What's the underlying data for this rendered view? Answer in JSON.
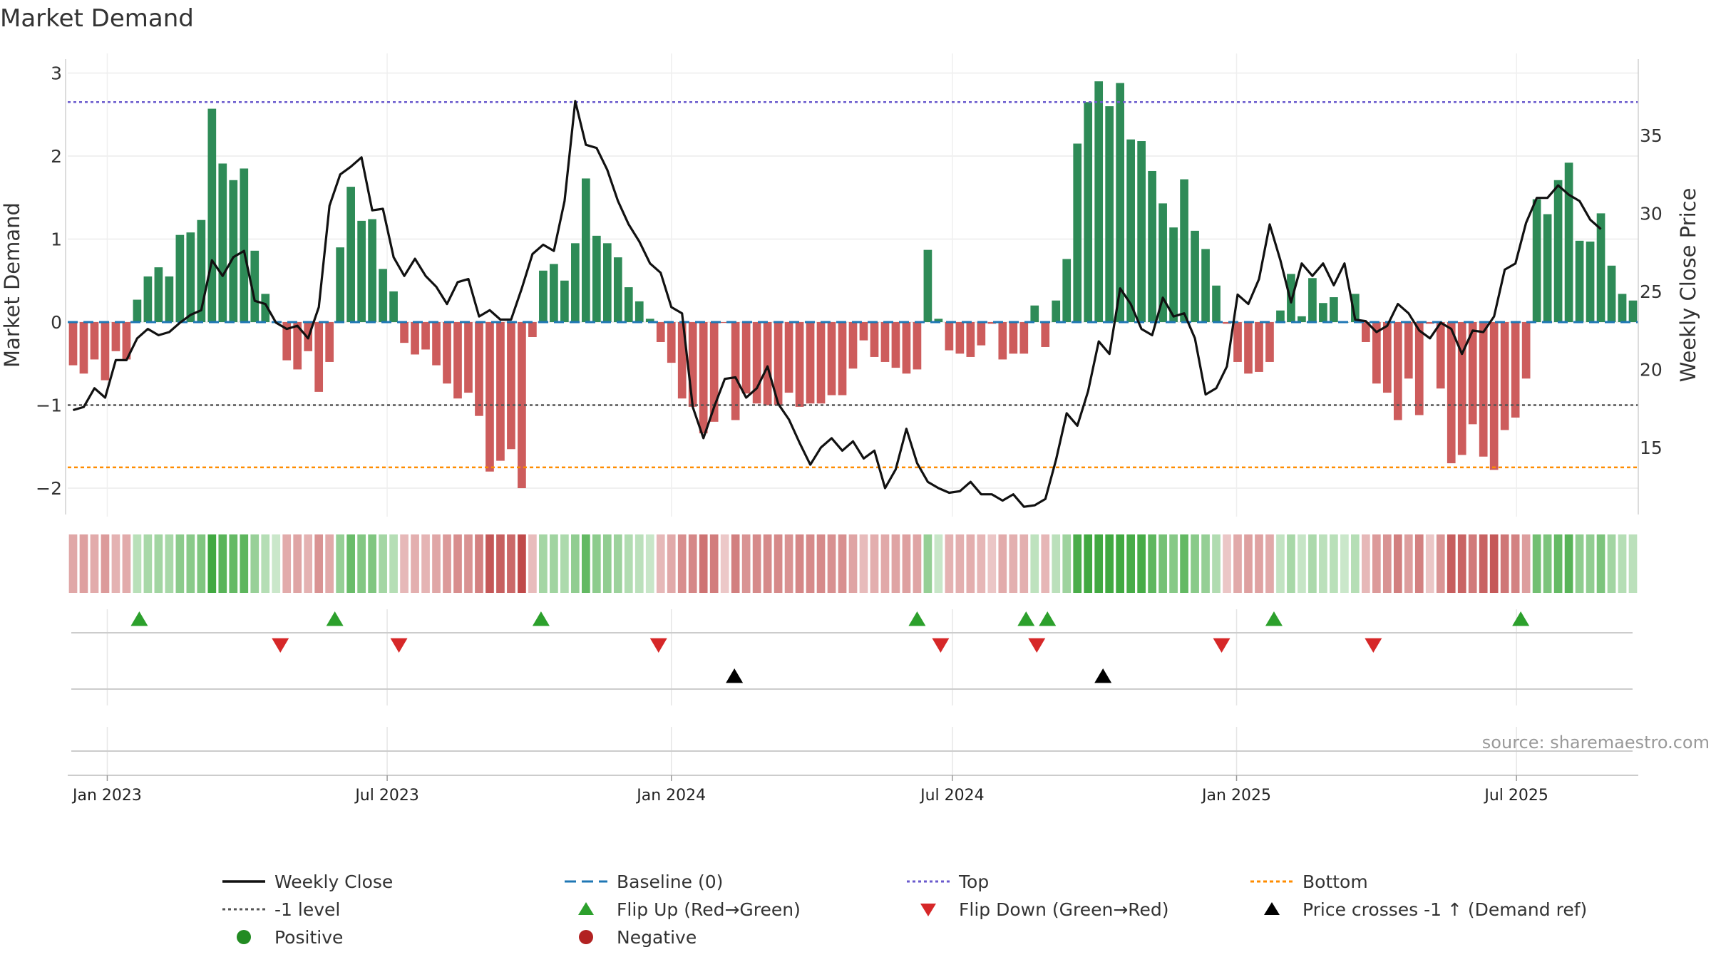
{
  "chart_data": {
    "type": "bar",
    "title": "Market Demand",
    "ylabel": "Market Demand",
    "y2label": "Weekly Close Price",
    "ylim": [
      -2.3,
      3.15
    ],
    "y2lim": [
      10.8,
      39.8
    ],
    "yticks": [
      -2,
      -1,
      0,
      1,
      2,
      3
    ],
    "yticklabels": [
      "−2",
      "−1",
      "0",
      "1",
      "2",
      "3"
    ],
    "y2ticks": [
      15,
      20,
      25,
      30,
      35
    ],
    "top_level": 2.65,
    "bottom_level": -1.75,
    "minus1_level": -1,
    "x_tick_labels": [
      "Jan 2023",
      "Jul 2023",
      "Jan 2024",
      "Jul 2024",
      "Jan 2025",
      "Jul 2025"
    ],
    "x_tick_weeks": [
      3.2,
      29.4,
      56.0,
      82.3,
      108.9,
      135.1
    ],
    "demand": [
      -0.52,
      -0.62,
      -0.45,
      -0.7,
      -0.35,
      -0.45,
      0.27,
      0.55,
      0.66,
      0.55,
      1.05,
      1.08,
      1.23,
      2.57,
      1.91,
      1.71,
      1.85,
      0.86,
      0.34,
      0.0,
      -0.46,
      -0.57,
      -0.35,
      -0.84,
      -0.48,
      0.9,
      1.63,
      1.22,
      1.24,
      0.64,
      0.37,
      -0.25,
      -0.39,
      -0.33,
      -0.52,
      -0.74,
      -0.92,
      -0.85,
      -1.13,
      -1.8,
      -1.67,
      -1.53,
      -2.0,
      -0.18,
      0.62,
      0.7,
      0.5,
      0.95,
      1.73,
      1.04,
      0.95,
      0.78,
      0.42,
      0.25,
      0.04,
      -0.24,
      -0.49,
      -0.92,
      -1.02,
      -1.34,
      -1.2,
      -0.01,
      -1.18,
      -0.86,
      -0.98,
      -1.0,
      -1.0,
      -0.85,
      -1.02,
      -0.98,
      -0.98,
      -0.88,
      -0.88,
      -0.56,
      -0.22,
      -0.42,
      -0.48,
      -0.55,
      -0.62,
      -0.57,
      0.87,
      0.04,
      -0.34,
      -0.38,
      -0.42,
      -0.28,
      -0.02,
      -0.45,
      -0.38,
      -0.38,
      0.2,
      -0.3,
      0.26,
      0.76,
      2.15,
      2.65,
      2.9,
      2.6,
      2.88,
      2.2,
      2.18,
      1.82,
      1.43,
      1.14,
      1.72,
      1.1,
      0.88,
      0.44,
      -0.02,
      -0.48,
      -0.62,
      -0.6,
      -0.48,
      0.14,
      0.58,
      0.07,
      0.53,
      0.23,
      0.3,
      0.0,
      0.34,
      -0.24,
      -0.74,
      -0.85,
      -1.18,
      -0.68,
      -1.12,
      -0.02,
      -0.8,
      -1.7,
      -1.6,
      -1.23,
      -1.62,
      -1.78,
      -1.3,
      -1.15,
      -0.68,
      1.48,
      1.3,
      1.71,
      1.92,
      0.98,
      0.97,
      1.31,
      0.68,
      0.34,
      0.26
    ],
    "weekly_close": [
      17.4,
      17.6,
      18.8,
      18.2,
      20.6,
      20.6,
      22.0,
      22.6,
      22.2,
      22.4,
      23.0,
      23.5,
      23.8,
      27.0,
      26.0,
      27.2,
      27.6,
      24.4,
      24.2,
      23.0,
      22.6,
      22.8,
      22.0,
      24.0,
      30.5,
      32.5,
      33.0,
      33.6,
      30.2,
      30.3,
      27.2,
      26.0,
      27.1,
      26.0,
      25.3,
      24.2,
      25.6,
      25.8,
      23.4,
      23.8,
      23.2,
      23.2,
      25.2,
      27.4,
      28.0,
      27.6,
      30.8,
      37.2,
      34.4,
      34.2,
      32.8,
      30.8,
      29.3,
      28.2,
      26.8,
      26.2,
      24.0,
      23.6,
      17.6,
      15.6,
      17.6,
      19.4,
      19.5,
      18.2,
      18.8,
      20.2,
      17.8,
      16.8,
      15.3,
      13.9,
      15.0,
      15.6,
      14.8,
      15.4,
      14.3,
      14.8,
      12.4,
      13.6,
      16.2,
      14.0,
      12.8,
      12.4,
      12.1,
      12.2,
      12.8,
      12.0,
      12.0,
      11.6,
      12.0,
      11.2,
      11.3,
      11.7,
      14.2,
      17.2,
      16.4,
      18.6,
      21.8,
      21.0,
      25.2,
      24.2,
      22.6,
      22.2,
      24.6,
      23.4,
      23.6,
      22.0,
      18.4,
      18.8,
      20.2,
      24.8,
      24.2,
      25.8,
      29.3,
      27.0,
      24.3,
      26.8,
      26.0,
      26.8,
      25.4,
      26.8,
      23.2,
      23.1,
      22.4,
      22.8,
      24.2,
      23.6,
      22.5,
      22.0,
      23.0,
      22.6,
      21.0,
      22.5,
      22.4,
      23.4,
      26.4,
      26.8,
      29.4,
      31.0,
      31.0,
      31.8,
      31.2,
      30.8,
      29.6,
      29.0
    ],
    "flip_up_weeks": [
      6.2,
      24.5,
      43.8,
      79.0,
      89.2,
      91.2,
      112.4,
      135.5
    ],
    "flip_down_weeks": [
      19.4,
      30.5,
      54.8,
      81.2,
      90.2,
      107.5,
      121.7
    ],
    "price_cross_weeks": [
      61.9,
      96.4
    ],
    "source": "source: sharemaestro.com",
    "legend": [
      {
        "key": "weekly_close",
        "label": "Weekly Close"
      },
      {
        "key": "baseline",
        "label": "Baseline (0)"
      },
      {
        "key": "top",
        "label": "Top"
      },
      {
        "key": "bottom",
        "label": "Bottom"
      },
      {
        "key": "minus1",
        "label": "-1 level"
      },
      {
        "key": "flip_up",
        "label": "Flip Up (Red→Green)"
      },
      {
        "key": "flip_down",
        "label": "Flip Down (Green→Red)"
      },
      {
        "key": "price_cross",
        "label": "Price crosses -1 ↑ (Demand ref)"
      },
      {
        "key": "positive",
        "label": "Positive"
      },
      {
        "key": "negative",
        "label": "Negative"
      }
    ],
    "colors": {
      "positive": "#2e8b57",
      "negative": "#cd5c5c",
      "close_line": "#111111",
      "baseline": "#1f77b4",
      "top": "#6a5acd",
      "bottom": "#ff8c00",
      "minus1": "#555555",
      "flip_up": "#2ca02c",
      "flip_down": "#d62728",
      "price_cross": "#000000",
      "positive_marker": "#228b22",
      "negative_marker": "#b22222"
    }
  }
}
